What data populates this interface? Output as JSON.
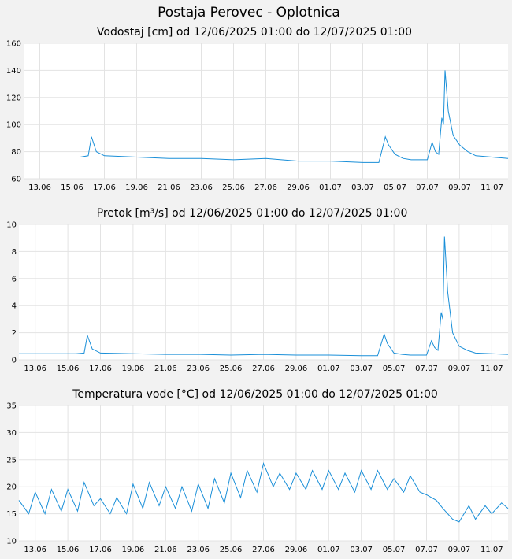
{
  "page": {
    "title": "Postaja Perovec - Oplotnica"
  },
  "chart_data": [
    {
      "type": "line",
      "title": "Vodostaj [cm] od 12/06/2025 01:00 do 12/07/2025 01:00",
      "xlabel": "",
      "ylabel": "",
      "x_range": [
        "2025-06-12",
        "2025-07-12"
      ],
      "ylim": [
        60,
        160
      ],
      "yticks": [
        60,
        80,
        100,
        120,
        140,
        160
      ],
      "xtick_labels": [
        "13.06",
        "15.06",
        "17.06",
        "19.06",
        "21.06",
        "23.06",
        "25.06",
        "27.06",
        "29.06",
        "01.07",
        "03.07",
        "05.07",
        "07.07",
        "09.07",
        "11.07"
      ],
      "grid": true,
      "series": [
        {
          "color": "#1a8fd8",
          "x": [
            "2025-06-12",
            "2025-06-14",
            "2025-06-15",
            "2025-06-15.5",
            "2025-06-16",
            "2025-06-16.2",
            "2025-06-16.5",
            "2025-06-17",
            "2025-06-19",
            "2025-06-21",
            "2025-06-23",
            "2025-06-25",
            "2025-06-27",
            "2025-06-29",
            "2025-07-01",
            "2025-07-03",
            "2025-07-04",
            "2025-07-04.4",
            "2025-07-04.6",
            "2025-07-05",
            "2025-07-05.5",
            "2025-07-06",
            "2025-07-06.7",
            "2025-07-07",
            "2025-07-07.3",
            "2025-07-07.5",
            "2025-07-07.7",
            "2025-07-07.9",
            "2025-07-08",
            "2025-07-08.1",
            "2025-07-08.3",
            "2025-07-08.6",
            "2025-07-09",
            "2025-07-09.5",
            "2025-07-10",
            "2025-07-11",
            "2025-07-12"
          ],
          "y": [
            76,
            76,
            76,
            76,
            77,
            91,
            80,
            77,
            76,
            75,
            75,
            74,
            75,
            73,
            73,
            72,
            72,
            91,
            85,
            78,
            75,
            74,
            74,
            74,
            87,
            80,
            78,
            105,
            100,
            140,
            110,
            92,
            85,
            80,
            77,
            76,
            75
          ]
        }
      ]
    },
    {
      "type": "line",
      "title": "Pretok [m³/s] od 12/06/2025 01:00 do 12/07/2025 01:00",
      "xlabel": "",
      "ylabel": "",
      "x_range": [
        "2025-06-12",
        "2025-07-12"
      ],
      "ylim": [
        0,
        10
      ],
      "yticks": [
        0,
        2,
        4,
        6,
        8,
        10
      ],
      "xtick_labels": [
        "13.06",
        "15.06",
        "17.06",
        "19.06",
        "21.06",
        "23.06",
        "25.06",
        "27.06",
        "29.06",
        "01.07",
        "03.07",
        "05.07",
        "07.07",
        "09.07",
        "11.07"
      ],
      "grid": true,
      "series": [
        {
          "color": "#1a8fd8",
          "x": [
            "2025-06-12",
            "2025-06-14",
            "2025-06-15",
            "2025-06-15.5",
            "2025-06-16",
            "2025-06-16.2",
            "2025-06-16.5",
            "2025-06-17",
            "2025-06-19",
            "2025-06-21",
            "2025-06-23",
            "2025-06-25",
            "2025-06-27",
            "2025-06-29",
            "2025-07-01",
            "2025-07-03",
            "2025-07-04",
            "2025-07-04.4",
            "2025-07-04.6",
            "2025-07-05",
            "2025-07-05.5",
            "2025-07-06",
            "2025-07-06.7",
            "2025-07-07",
            "2025-07-07.3",
            "2025-07-07.5",
            "2025-07-07.7",
            "2025-07-07.9",
            "2025-07-08",
            "2025-07-08.1",
            "2025-07-08.3",
            "2025-07-08.6",
            "2025-07-09",
            "2025-07-09.5",
            "2025-07-10",
            "2025-07-11",
            "2025-07-12"
          ],
          "y": [
            0.45,
            0.45,
            0.45,
            0.45,
            0.5,
            1.8,
            0.8,
            0.5,
            0.45,
            0.4,
            0.4,
            0.35,
            0.4,
            0.35,
            0.35,
            0.3,
            0.3,
            1.9,
            1.2,
            0.5,
            0.4,
            0.35,
            0.35,
            0.35,
            1.4,
            0.9,
            0.7,
            3.5,
            3.0,
            9.1,
            5.0,
            2.0,
            1.0,
            0.7,
            0.5,
            0.45,
            0.4
          ]
        }
      ]
    },
    {
      "type": "line",
      "title": "Temperatura vode [°C] od 12/06/2025 01:00 do 12/07/2025 01:00",
      "xlabel": "",
      "ylabel": "",
      "x_range": [
        "2025-06-12",
        "2025-07-12"
      ],
      "ylim": [
        10,
        35
      ],
      "yticks": [
        10,
        15,
        20,
        25,
        30,
        35
      ],
      "xtick_labels": [
        "13.06",
        "15.06",
        "17.06",
        "19.06",
        "21.06",
        "23.06",
        "25.06",
        "27.06",
        "29.06",
        "01.07",
        "03.07",
        "05.07",
        "07.07",
        "09.07",
        "11.07"
      ],
      "grid": true,
      "series": [
        {
          "color": "#1a8fd8",
          "x": [
            "2025-06-12",
            "2025-06-12.6",
            "2025-06-13",
            "2025-06-13.6",
            "2025-06-14",
            "2025-06-14.6",
            "2025-06-15",
            "2025-06-15.6",
            "2025-06-16",
            "2025-06-16.6",
            "2025-06-17",
            "2025-06-17.6",
            "2025-06-18",
            "2025-06-18.6",
            "2025-06-19",
            "2025-06-19.6",
            "2025-06-20",
            "2025-06-20.6",
            "2025-06-21",
            "2025-06-21.6",
            "2025-06-22",
            "2025-06-22.6",
            "2025-06-23",
            "2025-06-23.6",
            "2025-06-24",
            "2025-06-24.6",
            "2025-06-25",
            "2025-06-25.6",
            "2025-06-26",
            "2025-06-26.6",
            "2025-06-27",
            "2025-06-27.6",
            "2025-06-28",
            "2025-06-28.6",
            "2025-06-29",
            "2025-06-29.6",
            "2025-06-30",
            "2025-06-30.6",
            "2025-07-01",
            "2025-07-01.6",
            "2025-07-02",
            "2025-07-02.6",
            "2025-07-03",
            "2025-07-03.6",
            "2025-07-04",
            "2025-07-04.6",
            "2025-07-05",
            "2025-07-05.6",
            "2025-07-06",
            "2025-07-06.6",
            "2025-07-07",
            "2025-07-07.6",
            "2025-07-08",
            "2025-07-08.6",
            "2025-07-09",
            "2025-07-09.6",
            "2025-07-10",
            "2025-07-10.6",
            "2025-07-11",
            "2025-07-11.6",
            "2025-07-12"
          ],
          "y": [
            17.5,
            15,
            19,
            15,
            19.5,
            15.5,
            19.5,
            15.5,
            20.8,
            16.5,
            17.8,
            15,
            18,
            15,
            20.5,
            16,
            20.8,
            16.5,
            20,
            16,
            20,
            15.5,
            20.5,
            16,
            21.5,
            17,
            22.5,
            18,
            23,
            19,
            24.3,
            20,
            22.5,
            19.5,
            22.5,
            19.5,
            23,
            19.5,
            23,
            19.5,
            22.5,
            19,
            23,
            19.5,
            23,
            19.5,
            21.5,
            19,
            22,
            19,
            18.5,
            17.5,
            16,
            14,
            13.5,
            16.5,
            14,
            16.5,
            15,
            17,
            16
          ]
        }
      ]
    }
  ]
}
